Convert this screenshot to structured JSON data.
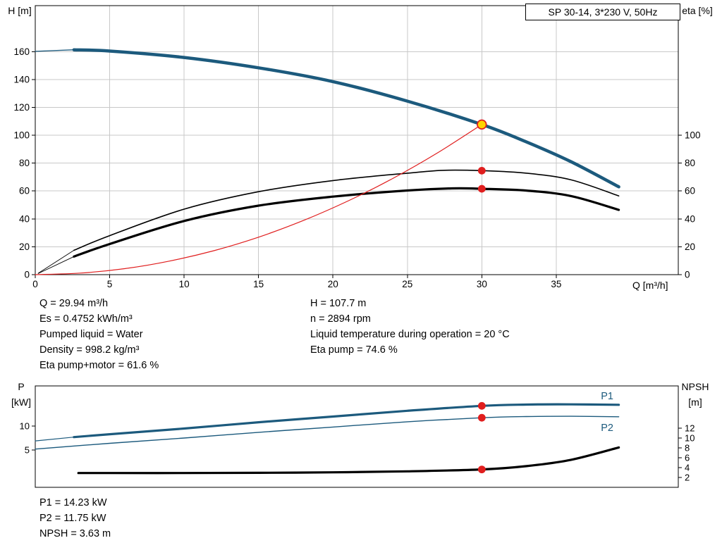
{
  "header": {
    "title_box": "SP 30-14, 3*230 V, 50Hz"
  },
  "colors": {
    "blue": "#1c5a7d",
    "black": "#000000",
    "red": "#e01e1e",
    "yellow": "#ffd400",
    "grid": "#c8c8c8",
    "axis": "#000000"
  },
  "info_top": {
    "left": [
      "Q = 29.94 m³/h",
      "Es = 0.4752 kWh/m³",
      "Pumped liquid = Water",
      "Density = 998.2 kg/m³",
      "Eta pump+motor = 61.6 %"
    ],
    "right": [
      "H = 107.7 m",
      "n = 2894 rpm",
      "Liquid temperature during operation = 20 °C",
      "Eta pump = 74.6 %"
    ]
  },
  "info_bottom": [
    "P1 = 14.23 kW",
    "P2 = 11.75 kW",
    "NPSH = 3.63 m"
  ],
  "chart_data": [
    {
      "type": "line",
      "title": "SP 30-14, 3*230 V, 50Hz",
      "xlabel": "Q [m³/h]",
      "ylabel_left": "H [m]",
      "ylabel_right": "eta [%]",
      "xlim": [
        0,
        43.2
      ],
      "ylim_left": [
        0,
        193
      ],
      "ylim_right": [
        0,
        193
      ],
      "x_ticks": [
        0,
        5,
        10,
        15,
        20,
        25,
        30,
        35
      ],
      "y_ticks_left": [
        0,
        20,
        40,
        60,
        80,
        100,
        120,
        140,
        160
      ],
      "y_ticks_right": [
        0,
        20,
        40,
        60,
        80,
        100
      ],
      "grid": true,
      "series": [
        {
          "name": "h-curve-lead",
          "color": "blue",
          "width": 1.3,
          "axis": "left",
          "points": [
            [
              0,
              160.2
            ],
            [
              2.6,
              161.3
            ]
          ]
        },
        {
          "name": "h-curve",
          "color": "blue",
          "width": 4.5,
          "axis": "left",
          "points": [
            [
              2.6,
              161.3
            ],
            [
              5,
              160.4
            ],
            [
              10,
              155.8
            ],
            [
              15,
              148.4
            ],
            [
              20,
              138.5
            ],
            [
              25,
              124.5
            ],
            [
              30,
              107.7
            ],
            [
              33,
              95.2
            ],
            [
              36,
              81
            ],
            [
              39.2,
              63
            ]
          ]
        },
        {
          "name": "eta-pump-lead",
          "color": "black",
          "width": 0.9,
          "axis": "left",
          "points": [
            [
              0.2,
              1
            ],
            [
              2.6,
              17.5
            ]
          ]
        },
        {
          "name": "eta-pump-curve",
          "color": "black",
          "width": 1.6,
          "axis": "left",
          "points": [
            [
              2.6,
              17.5
            ],
            [
              5,
              28
            ],
            [
              10,
              47
            ],
            [
              15,
              59.5
            ],
            [
              20,
              67.5
            ],
            [
              25,
              72.8
            ],
            [
              27.5,
              74.9
            ],
            [
              30,
              74.6
            ],
            [
              33,
              72.8
            ],
            [
              36,
              68
            ],
            [
              39.2,
              56.5
            ]
          ]
        },
        {
          "name": "eta-pump-motor-lead",
          "color": "black",
          "width": 0.9,
          "axis": "left",
          "points": [
            [
              0.2,
              0.8
            ],
            [
              2.6,
              13
            ]
          ]
        },
        {
          "name": "eta-pump-motor-curve",
          "color": "black",
          "width": 3.2,
          "axis": "left",
          "points": [
            [
              2.6,
              13
            ],
            [
              5,
              22
            ],
            [
              10,
              38.5
            ],
            [
              15,
              49.5
            ],
            [
              20,
              56
            ],
            [
              25,
              60.4
            ],
            [
              28,
              61.9
            ],
            [
              30,
              61.6
            ],
            [
              33,
              60.3
            ],
            [
              36,
              56.4
            ],
            [
              39.2,
              46.5
            ]
          ]
        },
        {
          "name": "system-curve",
          "color": "red",
          "width": 1.2,
          "axis": "left",
          "points": [
            [
              0,
              0
            ],
            [
              3,
              1.1
            ],
            [
              6,
              4.3
            ],
            [
              9,
              9.7
            ],
            [
              12,
              17.2
            ],
            [
              15,
              26.9
            ],
            [
              18,
              38.8
            ],
            [
              21,
              52.8
            ],
            [
              24,
              68.9
            ],
            [
              27,
              87.2
            ],
            [
              30,
              107.7
            ]
          ]
        }
      ],
      "markers": [
        {
          "name": "duty-point",
          "style": "duty",
          "axis": "left",
          "x": 30,
          "y": 107.7
        },
        {
          "name": "eta-pump-point",
          "style": "red",
          "axis": "left",
          "x": 30,
          "y": 74.6
        },
        {
          "name": "eta-pump-motor-point",
          "style": "red",
          "axis": "left",
          "x": 30,
          "y": 61.6
        }
      ],
      "labels": []
    },
    {
      "type": "line",
      "title": "",
      "xlabel": "",
      "ylabel_left": "P [kW]",
      "ylabel_right": "NPSH [m]",
      "xlim": [
        0,
        43.2
      ],
      "ylim_left": [
        -2.8,
        18.4
      ],
      "ylim_right": [
        0,
        20.6
      ],
      "x_ticks": [],
      "y_ticks_left": [
        5,
        10
      ],
      "y_ticks_right": [
        2,
        4,
        6,
        8,
        10,
        12
      ],
      "grid": false,
      "series": [
        {
          "name": "p1-curve-lead",
          "color": "blue",
          "width": 1.2,
          "axis": "left",
          "points": [
            [
              0,
              6.9
            ],
            [
              2.6,
              7.7
            ]
          ]
        },
        {
          "name": "p1-curve",
          "color": "blue",
          "width": 3.2,
          "axis": "left",
          "points": [
            [
              2.6,
              7.7
            ],
            [
              5,
              8.3
            ],
            [
              10,
              9.5
            ],
            [
              15,
              10.8
            ],
            [
              20,
              12
            ],
            [
              25,
              13.2
            ],
            [
              30,
              14.23
            ],
            [
              33,
              14.5
            ],
            [
              36,
              14.55
            ],
            [
              39.2,
              14.45
            ]
          ]
        },
        {
          "name": "p2-curve",
          "color": "blue",
          "width": 1.4,
          "axis": "left",
          "points": [
            [
              0,
              5.2
            ],
            [
              5,
              6.4
            ],
            [
              10,
              7.5
            ],
            [
              15,
              8.7
            ],
            [
              20,
              9.8
            ],
            [
              25,
              10.9
            ],
            [
              30,
              11.75
            ],
            [
              33,
              12
            ],
            [
              36,
              12.05
            ],
            [
              39.2,
              11.95
            ]
          ]
        },
        {
          "name": "npsh-curve",
          "color": "black",
          "width": 3.2,
          "axis": "right",
          "points": [
            [
              2.9,
              2.9
            ],
            [
              5,
              2.9
            ],
            [
              10,
              2.9
            ],
            [
              15,
              2.95
            ],
            [
              20,
              3.05
            ],
            [
              25,
              3.25
            ],
            [
              30,
              3.63
            ],
            [
              33,
              4.3
            ],
            [
              36,
              5.6
            ],
            [
              39.2,
              8.1
            ]
          ]
        }
      ],
      "markers": [
        {
          "name": "p1-point",
          "style": "red",
          "axis": "left",
          "x": 30,
          "y": 14.23
        },
        {
          "name": "p2-point",
          "style": "red",
          "axis": "left",
          "x": 30,
          "y": 11.75
        },
        {
          "name": "npsh-point",
          "style": "red",
          "axis": "right",
          "x": 30,
          "y": 3.63
        }
      ],
      "labels": [
        {
          "text": "P1",
          "x": 38.0,
          "y": 16.2,
          "axis": "left",
          "color": "blue"
        },
        {
          "text": "P2",
          "x": 38.0,
          "y": 9.6,
          "axis": "left",
          "color": "blue"
        }
      ]
    }
  ]
}
